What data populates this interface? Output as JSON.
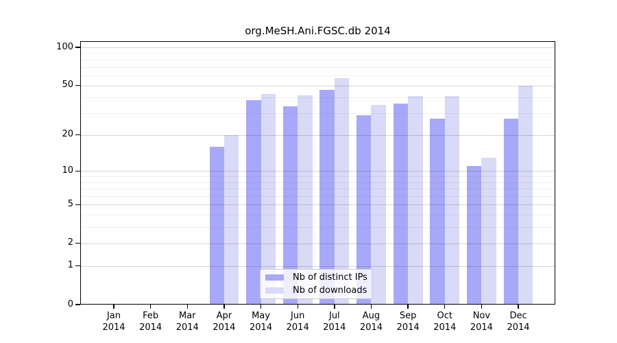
{
  "chart_data": {
    "type": "bar",
    "title": "org.MeSH.Ani.FGSC.db 2014",
    "yscale": "log1p",
    "ylim": [
      0,
      111
    ],
    "grid": true,
    "legend_position": "lower center",
    "categories": [
      {
        "month": "Jan",
        "year": "2014"
      },
      {
        "month": "Feb",
        "year": "2014"
      },
      {
        "month": "Mar",
        "year": "2014"
      },
      {
        "month": "Apr",
        "year": "2014"
      },
      {
        "month": "May",
        "year": "2014"
      },
      {
        "month": "Jun",
        "year": "2014"
      },
      {
        "month": "Jul",
        "year": "2014"
      },
      {
        "month": "Aug",
        "year": "2014"
      },
      {
        "month": "Sep",
        "year": "2014"
      },
      {
        "month": "Oct",
        "year": "2014"
      },
      {
        "month": "Nov",
        "year": "2014"
      },
      {
        "month": "Dec",
        "year": "2014"
      }
    ],
    "series": [
      {
        "name": "Nb of distinct IPs",
        "color": "#a8a8f8",
        "values": [
          0,
          0,
          0,
          16,
          38,
          34,
          46,
          29,
          36,
          27,
          11,
          27
        ]
      },
      {
        "name": "Nb of downloads",
        "color": "#d9d9f8",
        "values": [
          0,
          0,
          0,
          20,
          43,
          42,
          57,
          35,
          41,
          41,
          13,
          50
        ]
      }
    ],
    "yticks": [
      {
        "value": 100,
        "label": "100"
      },
      {
        "value": 50,
        "label": "50"
      },
      {
        "value": 20,
        "label": "20"
      },
      {
        "value": 10,
        "label": "10"
      },
      {
        "value": 5,
        "label": "5"
      },
      {
        "value": 2,
        "label": "2"
      },
      {
        "value": 1,
        "label": "1"
      },
      {
        "value": 0,
        "label": "0"
      }
    ],
    "minor_gridlines": [
      3,
      4,
      6,
      7,
      8,
      9,
      30,
      40,
      60,
      70,
      80,
      90
    ]
  }
}
